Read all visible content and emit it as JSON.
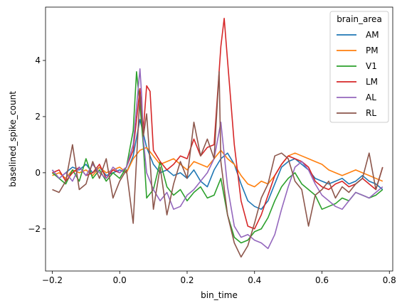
{
  "chart_data": {
    "type": "line",
    "xlabel": "bin_time",
    "ylabel": "baselined_spike_count",
    "xlim": [
      -0.22,
      0.81
    ],
    "ylim": [
      -3.5,
      5.9
    ],
    "xticks": [
      -0.2,
      0.0,
      0.2,
      0.4,
      0.6,
      0.8
    ],
    "xtick_labels": [
      "−0.2",
      "0.0",
      "0.2",
      "0.4",
      "0.6",
      "0.8"
    ],
    "yticks": [
      -2,
      0,
      2,
      4
    ],
    "ytick_labels": [
      "−2",
      "0",
      "2",
      "4"
    ],
    "grid": false,
    "legend": {
      "title": "brain_area",
      "placement": "top-right"
    },
    "series": [
      {
        "name": "AM",
        "color": "#1f77b4",
        "x": [
          -0.2,
          -0.18,
          -0.16,
          -0.14,
          -0.12,
          -0.1,
          -0.08,
          -0.06,
          -0.04,
          -0.02,
          0.0,
          0.02,
          0.04,
          0.06,
          0.08,
          0.1,
          0.12,
          0.14,
          0.16,
          0.18,
          0.2,
          0.22,
          0.24,
          0.26,
          0.28,
          0.3,
          0.32,
          0.34,
          0.36,
          0.38,
          0.4,
          0.42,
          0.44,
          0.46,
          0.48,
          0.5,
          0.52,
          0.54,
          0.56,
          0.58,
          0.6,
          0.62,
          0.64,
          0.66,
          0.68,
          0.7,
          0.72,
          0.74,
          0.76,
          0.78
        ],
        "y": [
          0.1,
          -0.2,
          0.0,
          0.2,
          0.1,
          0.3,
          0.0,
          0.2,
          -0.1,
          0.0,
          0.1,
          0.0,
          0.6,
          1.9,
          0.9,
          0.3,
          0.0,
          0.1,
          -0.1,
          0.0,
          -0.2,
          0.1,
          -0.3,
          -0.5,
          0.1,
          0.5,
          0.7,
          0.3,
          -0.4,
          -1.0,
          -1.2,
          -1.3,
          -1.0,
          -0.4,
          0.2,
          0.4,
          0.5,
          0.3,
          0.1,
          -0.2,
          -0.3,
          -0.4,
          -0.3,
          -0.2,
          -0.4,
          -0.3,
          -0.1,
          -0.3,
          -0.4,
          -0.6
        ]
      },
      {
        "name": "PM",
        "color": "#ff7f0e",
        "x": [
          -0.2,
          -0.18,
          -0.16,
          -0.14,
          -0.12,
          -0.1,
          -0.08,
          -0.06,
          -0.04,
          -0.02,
          0.0,
          0.02,
          0.04,
          0.06,
          0.08,
          0.1,
          0.12,
          0.14,
          0.16,
          0.18,
          0.2,
          0.22,
          0.24,
          0.26,
          0.28,
          0.3,
          0.32,
          0.34,
          0.36,
          0.38,
          0.4,
          0.42,
          0.44,
          0.46,
          0.48,
          0.5,
          0.52,
          0.54,
          0.56,
          0.58,
          0.6,
          0.62,
          0.64,
          0.66,
          0.68,
          0.7,
          0.72,
          0.74,
          0.76,
          0.78
        ],
        "y": [
          -0.1,
          0.0,
          -0.2,
          0.1,
          0.0,
          0.1,
          -0.1,
          0.2,
          0.0,
          0.1,
          0.2,
          0.0,
          0.5,
          0.8,
          0.9,
          0.6,
          0.3,
          0.4,
          0.5,
          0.3,
          0.1,
          0.4,
          0.3,
          0.2,
          0.5,
          0.8,
          0.5,
          0.3,
          -0.1,
          -0.4,
          -0.5,
          -0.3,
          -0.4,
          -0.1,
          0.3,
          0.6,
          0.7,
          0.6,
          0.5,
          0.4,
          0.3,
          0.1,
          0.0,
          -0.1,
          0.0,
          0.1,
          0.0,
          -0.1,
          -0.2,
          -0.3
        ]
      },
      {
        "name": "V1",
        "color": "#2ca02c",
        "x": [
          -0.2,
          -0.18,
          -0.16,
          -0.14,
          -0.12,
          -0.1,
          -0.08,
          -0.06,
          -0.04,
          -0.02,
          0.0,
          0.02,
          0.04,
          0.05,
          0.06,
          0.07,
          0.08,
          0.1,
          0.12,
          0.14,
          0.16,
          0.18,
          0.2,
          0.22,
          0.24,
          0.26,
          0.28,
          0.3,
          0.32,
          0.34,
          0.36,
          0.38,
          0.4,
          0.42,
          0.44,
          0.46,
          0.48,
          0.5,
          0.52,
          0.54,
          0.56,
          0.58,
          0.6,
          0.62,
          0.64,
          0.66,
          0.68,
          0.7,
          0.72,
          0.74,
          0.76,
          0.78
        ],
        "y": [
          0.0,
          -0.2,
          -0.4,
          0.1,
          -0.3,
          0.5,
          -0.2,
          0.1,
          -0.3,
          0.0,
          -0.2,
          0.2,
          1.5,
          3.6,
          2.4,
          1.0,
          -0.9,
          -0.6,
          0.4,
          -0.5,
          -0.8,
          -0.6,
          -1.0,
          -0.7,
          -0.5,
          -0.9,
          -0.8,
          -0.2,
          -1.5,
          -2.3,
          -2.5,
          -2.4,
          -2.1,
          -2.0,
          -1.6,
          -1.0,
          -0.5,
          -0.2,
          0.0,
          -0.4,
          -0.6,
          -0.8,
          -1.3,
          -1.2,
          -1.1,
          -0.9,
          -1.0,
          -0.7,
          -0.8,
          -0.9,
          -0.8,
          -0.6
        ]
      },
      {
        "name": "LM",
        "color": "#d62728",
        "x": [
          -0.2,
          -0.18,
          -0.16,
          -0.14,
          -0.12,
          -0.1,
          -0.08,
          -0.06,
          -0.04,
          -0.02,
          0.0,
          0.02,
          0.04,
          0.06,
          0.07,
          0.08,
          0.09,
          0.1,
          0.12,
          0.14,
          0.16,
          0.18,
          0.2,
          0.22,
          0.24,
          0.26,
          0.28,
          0.3,
          0.31,
          0.32,
          0.34,
          0.36,
          0.38,
          0.4,
          0.42,
          0.44,
          0.46,
          0.48,
          0.5,
          0.52,
          0.54,
          0.56,
          0.58,
          0.6,
          0.62,
          0.64,
          0.66,
          0.68,
          0.7,
          0.72,
          0.74,
          0.76,
          0.78
        ],
        "y": [
          0.0,
          0.1,
          -0.3,
          0.0,
          0.2,
          -0.1,
          0.0,
          0.3,
          -0.2,
          0.1,
          0.0,
          0.2,
          0.8,
          3.0,
          1.5,
          3.1,
          2.9,
          0.8,
          0.4,
          0.1,
          0.3,
          0.6,
          0.5,
          1.2,
          0.6,
          0.9,
          1.0,
          4.5,
          5.5,
          4.0,
          1.0,
          -1.0,
          -1.9,
          -2.0,
          -1.5,
          -0.8,
          -0.1,
          0.3,
          0.6,
          0.5,
          0.4,
          0.2,
          -0.3,
          -0.5,
          -0.6,
          -0.4,
          -0.3,
          -0.5,
          -0.4,
          -0.2,
          -0.4,
          -0.6,
          0.2
        ]
      },
      {
        "name": "AL",
        "color": "#9467bd",
        "x": [
          -0.2,
          -0.18,
          -0.16,
          -0.14,
          -0.12,
          -0.1,
          -0.08,
          -0.06,
          -0.04,
          -0.02,
          0.0,
          0.02,
          0.04,
          0.06,
          0.065,
          0.07,
          0.08,
          0.1,
          0.12,
          0.14,
          0.16,
          0.18,
          0.2,
          0.22,
          0.24,
          0.26,
          0.28,
          0.3,
          0.32,
          0.34,
          0.36,
          0.38,
          0.4,
          0.42,
          0.44,
          0.46,
          0.48,
          0.5,
          0.52,
          0.54,
          0.56,
          0.58,
          0.6,
          0.62,
          0.64,
          0.66,
          0.68,
          0.7,
          0.72,
          0.74,
          0.76,
          0.78
        ],
        "y": [
          0.1,
          -0.2,
          0.0,
          -0.3,
          0.2,
          -0.1,
          0.3,
          0.0,
          -0.2,
          0.2,
          0.0,
          0.2,
          1.0,
          3.7,
          2.8,
          1.2,
          0.0,
          -0.6,
          -1.0,
          -0.7,
          -1.3,
          -1.2,
          -0.8,
          -0.6,
          -0.3,
          0.0,
          0.5,
          1.8,
          -0.5,
          -1.9,
          -2.3,
          -2.2,
          -2.4,
          -2.5,
          -2.7,
          -2.2,
          -1.3,
          -0.5,
          0.2,
          0.4,
          0.1,
          -0.4,
          -0.8,
          -1.0,
          -1.2,
          -1.3,
          -1.0,
          -0.7,
          -0.8,
          -0.9,
          -0.7,
          -0.5
        ]
      },
      {
        "name": "RL",
        "color": "#8c564b",
        "x": [
          -0.2,
          -0.18,
          -0.16,
          -0.14,
          -0.12,
          -0.1,
          -0.08,
          -0.06,
          -0.04,
          -0.02,
          0.0,
          0.02,
          0.04,
          0.06,
          0.07,
          0.08,
          0.1,
          0.12,
          0.14,
          0.16,
          0.18,
          0.2,
          0.22,
          0.24,
          0.26,
          0.28,
          0.295,
          0.3,
          0.32,
          0.34,
          0.36,
          0.38,
          0.4,
          0.42,
          0.44,
          0.46,
          0.48,
          0.5,
          0.52,
          0.54,
          0.56,
          0.58,
          0.6,
          0.62,
          0.64,
          0.66,
          0.68,
          0.7,
          0.72,
          0.74,
          0.76,
          0.78
        ],
        "y": [
          -0.6,
          -0.7,
          -0.3,
          1.0,
          -0.6,
          -0.4,
          0.4,
          -0.2,
          0.5,
          -0.9,
          -0.3,
          0.1,
          -1.8,
          2.8,
          1.3,
          2.1,
          -1.3,
          0.2,
          -1.5,
          -0.4,
          0.4,
          -0.2,
          1.8,
          0.6,
          1.2,
          0.5,
          3.6,
          0.4,
          -1.5,
          -2.5,
          -3.0,
          -2.6,
          -1.8,
          -0.9,
          -0.4,
          0.6,
          0.7,
          0.5,
          -0.3,
          -0.6,
          -1.9,
          -0.8,
          -0.6,
          -0.3,
          -0.9,
          -0.5,
          -0.7,
          -0.4,
          -0.2,
          0.7,
          -0.6,
          0.2
        ]
      }
    ]
  }
}
